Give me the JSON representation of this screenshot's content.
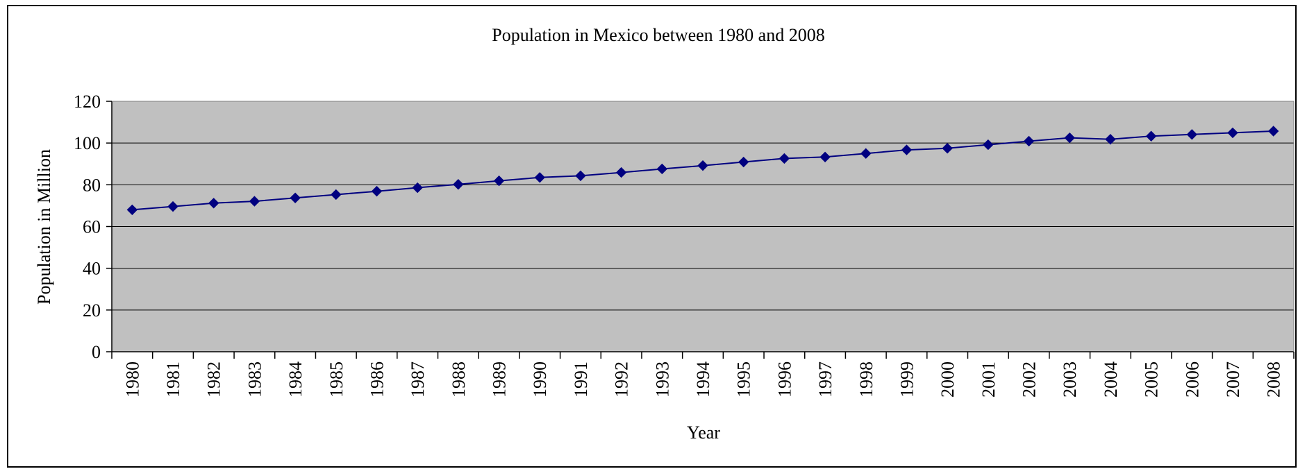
{
  "chart_data": {
    "type": "line",
    "title": "Population in Mexico between 1980 and 2008",
    "xlabel": "Year",
    "ylabel": "Population in Million",
    "ylim": [
      0,
      120
    ],
    "yticks": [
      "0",
      "20",
      "40",
      "60",
      "80",
      "100",
      "120"
    ],
    "grid": true,
    "legend": "none",
    "colors": {
      "plot_background": "#c0c0c0",
      "series_line": "#000080",
      "gridline": "#000000"
    },
    "categories": [
      "1980",
      "1981",
      "1982",
      "1983",
      "1984",
      "1985",
      "1986",
      "1987",
      "1988",
      "1989",
      "1990",
      "1991",
      "1992",
      "1993",
      "1994",
      "1995",
      "1996",
      "1997",
      "1998",
      "1999",
      "2000",
      "2001",
      "2002",
      "2003",
      "2004",
      "2005",
      "2006",
      "2007",
      "2008"
    ],
    "series": [
      {
        "values": [
          68.0,
          69.6,
          71.2,
          72.1,
          73.7,
          75.3,
          76.9,
          78.6,
          80.2,
          81.9,
          83.5,
          84.3,
          85.9,
          87.6,
          89.2,
          90.9,
          92.6,
          93.3,
          95.0,
          96.7,
          97.5,
          99.2,
          100.9,
          102.5,
          101.8,
          103.3,
          104.1,
          104.9,
          105.7
        ],
        "marker": "diamond"
      }
    ]
  }
}
